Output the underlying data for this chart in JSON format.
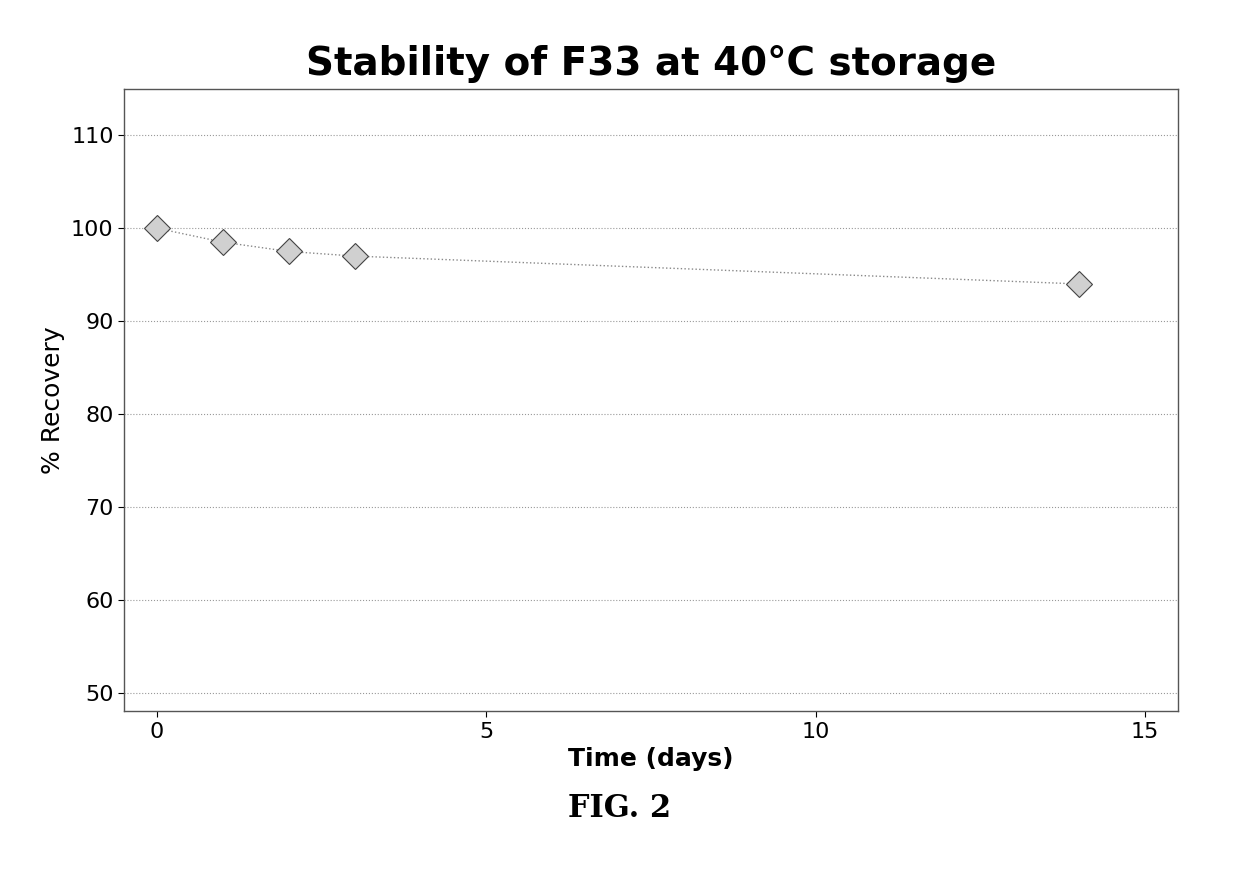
{
  "title": "Stability of F33 at 40°C storage",
  "xlabel": "Time (days)",
  "ylabel": "% Recovery",
  "xlim": [
    -0.5,
    15.5
  ],
  "ylim": [
    48,
    115
  ],
  "yticks": [
    50,
    60,
    70,
    80,
    90,
    100,
    110
  ],
  "xticks": [
    0,
    5,
    10,
    15
  ],
  "x_data": [
    0,
    1,
    2,
    3,
    14
  ],
  "y_data": [
    100.0,
    98.5,
    97.5,
    97.0,
    94.0
  ],
  "line_color": "#888888",
  "marker_color": "#555555",
  "background_color": "#ffffff",
  "plot_background": "#ffffff",
  "grid_color": "#999999",
  "title_fontsize": 28,
  "axis_label_fontsize": 18,
  "tick_fontsize": 16,
  "fig_caption": "FIG. 2",
  "caption_fontsize": 22
}
